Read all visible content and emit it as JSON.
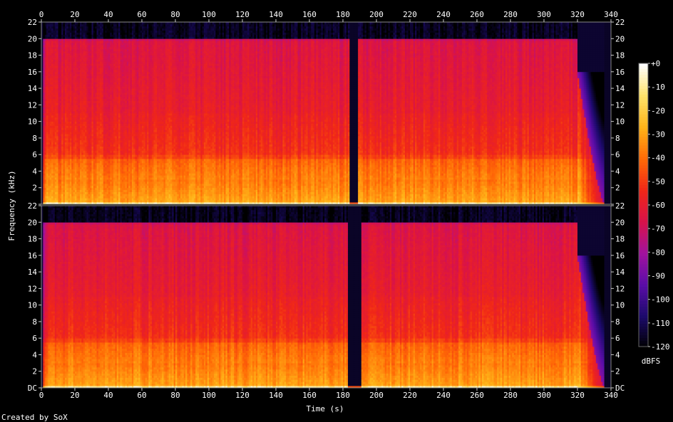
{
  "chart_data": {
    "type": "heatmap",
    "title": "",
    "xlabel": "Time (s)",
    "ylabel": "Frequency (kHz)",
    "xlim": [
      0,
      340
    ],
    "ylim": [
      0,
      22
    ],
    "x_ticks": [
      0,
      20,
      40,
      60,
      80,
      100,
      120,
      140,
      160,
      180,
      200,
      220,
      240,
      260,
      280,
      300,
      320,
      340
    ],
    "x_tick_labels": [
      "0",
      "20",
      "40",
      "60",
      "80",
      "100",
      "120",
      "140",
      "160",
      "180",
      "200",
      "220",
      "240",
      "260",
      "280",
      "300",
      "320",
      "340"
    ],
    "y_ticks": [
      0,
      2,
      4,
      6,
      8,
      10,
      12,
      14,
      16,
      18,
      20,
      22
    ],
    "y_tick_labels_top_channel": [
      "",
      "2",
      "4",
      "6",
      "8",
      "10",
      "12",
      "14",
      "16",
      "18",
      "20",
      "22"
    ],
    "y_tick_labels_bottom_channel": [
      "DC",
      "2",
      "4",
      "6",
      "8",
      "10",
      "12",
      "14",
      "16",
      "18",
      "20",
      "22"
    ],
    "channels": 2,
    "colorbar": {
      "label": "dBFS",
      "range": [
        -120,
        0
      ],
      "ticks": [
        0,
        -10,
        -20,
        -30,
        -40,
        -50,
        -60,
        -70,
        -80,
        -90,
        -100,
        -110,
        -120
      ],
      "tick_labels": [
        "+0",
        "-10",
        "-20",
        "-30",
        "-40",
        "-50",
        "-60",
        "-70",
        "-80",
        "-90",
        "-100",
        "-110",
        "-120"
      ],
      "colors": [
        "#000000",
        "#1c0a6b",
        "#5a0da8",
        "#a1129e",
        "#d8124a",
        "#f02718",
        "#ff6a06",
        "#ffb318",
        "#ffe36a",
        "#ffffff"
      ]
    },
    "content_end_s": 320,
    "fade_end_s": 336,
    "top_channel_gap_s": [
      184,
      189
    ],
    "bottom_channel_gap_s": [
      183,
      191
    ],
    "bandlimit_khz": 20,
    "colorbar_legend_position": "right",
    "grid": false
  },
  "footer": {
    "credit": "Created by SoX"
  }
}
